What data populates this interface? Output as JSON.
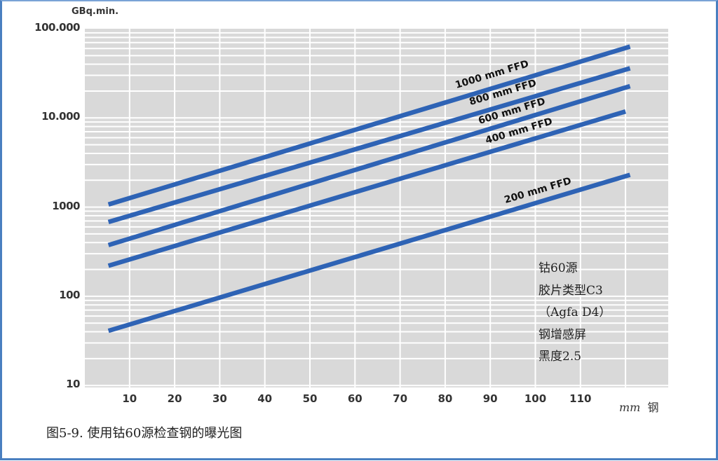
{
  "chart_data": {
    "type": "line",
    "title": "",
    "caption": "图5-9.  使用钴60源检查钢的曝光图",
    "xlabel": "mm 钢",
    "xlabel_unit": "mm",
    "xlabel_material": "钢",
    "ylabel": "GBq.min.",
    "yscale": "log",
    "xlim": [
      0,
      130
    ],
    "ylim": [
      10,
      100000
    ],
    "xticks": [
      10,
      20,
      30,
      40,
      50,
      60,
      70,
      80,
      90,
      100,
      110
    ],
    "yticks": [
      {
        "value": 100000,
        "label": "100.000"
      },
      {
        "value": 10000,
        "label": "10.000"
      },
      {
        "value": 1000,
        "label": "1000"
      },
      {
        "value": 100,
        "label": "100"
      },
      {
        "value": 10,
        "label": "10"
      }
    ],
    "grid": true,
    "legend_position": "inline labels on lines",
    "series": [
      {
        "name": "1000 mm FFD",
        "x": [
          5,
          121
        ],
        "values": [
          1070,
          63000
        ]
      },
      {
        "name": "800 mm FFD",
        "x": [
          5,
          121
        ],
        "values": [
          680,
          36000
        ]
      },
      {
        "name": "600 mm FFD",
        "x": [
          5,
          121
        ],
        "values": [
          375,
          22700
        ]
      },
      {
        "name": "400 mm FFD",
        "x": [
          5,
          120
        ],
        "values": [
          220,
          11800
        ]
      },
      {
        "name": "200 mm FFD",
        "x": [
          5,
          121
        ],
        "values": [
          41,
          2300
        ]
      }
    ],
    "annotations": [
      "钴60源",
      "胶片类型C3",
      "（Agfa D4）",
      "钢增感屏",
      "黑度2.5"
    ],
    "colors": {
      "line": "#2e63b5",
      "plot_bg": "#d9d9d9",
      "grid": "#ffffff",
      "frame": "#4a7fc0"
    }
  }
}
